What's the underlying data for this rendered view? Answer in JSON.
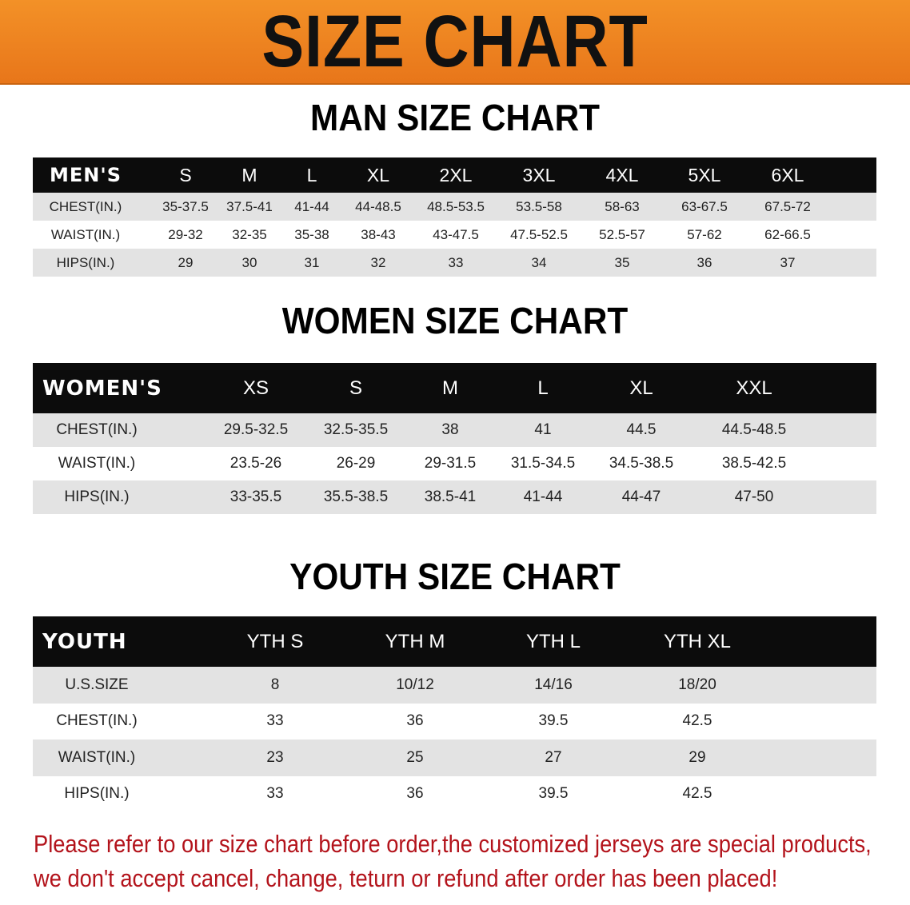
{
  "banner_title": "SIZE CHART",
  "men": {
    "title": "MAN SIZE CHART",
    "header": [
      "MEN'S",
      "S",
      "M",
      "L",
      "XL",
      "2XL",
      "3XL",
      "4XL",
      "5XL",
      "6XL"
    ],
    "rows": [
      [
        "CHEST(IN.)",
        "35-37.5",
        "37.5-41",
        "41-44",
        "44-48.5",
        "48.5-53.5",
        "53.5-58",
        "58-63",
        "63-67.5",
        "67.5-72"
      ],
      [
        "WAIST(IN.)",
        "29-32",
        "32-35",
        "35-38",
        "38-43",
        "43-47.5",
        "47.5-52.5",
        "52.5-57",
        "57-62",
        "62-66.5"
      ],
      [
        "HIPS(IN.)",
        "29",
        "30",
        "31",
        "32",
        "33",
        "34",
        "35",
        "36",
        "37"
      ]
    ]
  },
  "women": {
    "title": "WOMEN SIZE CHART",
    "header": [
      "WOMEN'S",
      "XS",
      "S",
      "M",
      "L",
      "XL",
      "XXL"
    ],
    "rows": [
      [
        "CHEST(IN.)",
        "29.5-32.5",
        "32.5-35.5",
        "38",
        "41",
        "44.5",
        "44.5-48.5"
      ],
      [
        "WAIST(IN.)",
        "23.5-26",
        "26-29",
        "29-31.5",
        "31.5-34.5",
        "34.5-38.5",
        "38.5-42.5"
      ],
      [
        "HIPS(IN.)",
        "33-35.5",
        "35.5-38.5",
        "38.5-41",
        "41-44",
        "44-47",
        "47-50"
      ]
    ]
  },
  "youth": {
    "title": "YOUTH SIZE CHART",
    "header": [
      "YOUTH",
      "YTH S",
      "YTH M",
      "YTH L",
      "YTH XL"
    ],
    "rows": [
      [
        "U.S.SIZE",
        "8",
        "10/12",
        "14/16",
        "18/20"
      ],
      [
        "CHEST(IN.)",
        "33",
        "36",
        "39.5",
        "42.5"
      ],
      [
        "WAIST(IN.)",
        "23",
        "25",
        "27",
        "29"
      ],
      [
        "HIPS(IN.)",
        "33",
        "36",
        "39.5",
        "42.5"
      ]
    ]
  },
  "note": {
    "line1": "Please refer to our size chart before order,the customized jerseys are special products,",
    "line2": "we don't accept cancel, change, teturn or refund after order has been placed!"
  },
  "colors": {
    "banner": "#ee8420",
    "header_row": "#0c0c0c",
    "note_text": "#b3131b"
  }
}
